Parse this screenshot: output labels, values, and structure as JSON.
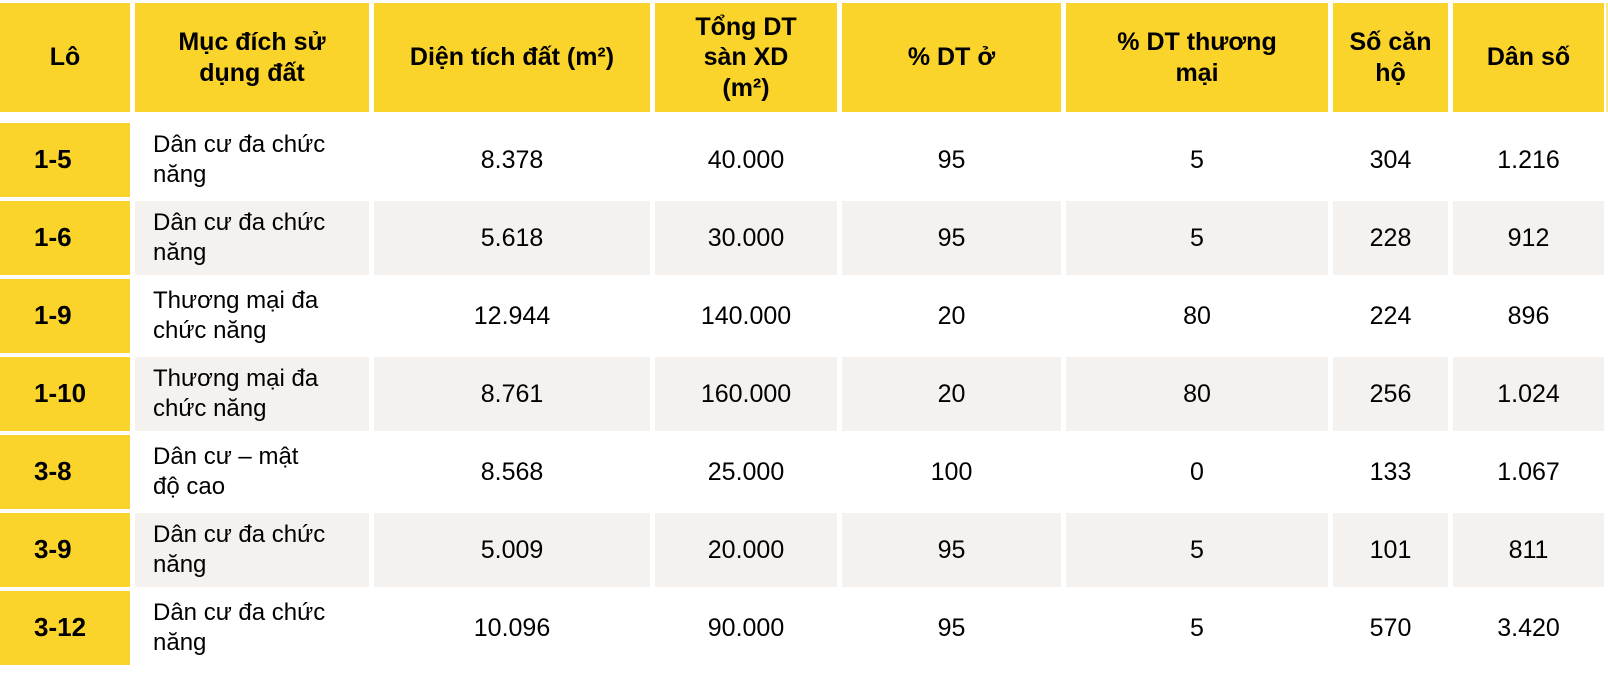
{
  "chart_data": {
    "type": "table",
    "title": "",
    "columns": [
      "Lô",
      "Mục đích sử\ndụng đất",
      "Diện tích đất (m²)",
      "Tổng DT\nsàn XD\n(m²)",
      "% DT ở",
      "% DT thương\nmại",
      "Số căn\nhộ",
      "Dân số"
    ],
    "fields": [
      "lot",
      "purpose",
      "land_area_m2",
      "total_floor_area_m2",
      "pct_residential",
      "pct_commercial",
      "apartments",
      "population"
    ],
    "rows": [
      {
        "lot": "1-5",
        "purpose": "Dân cư đa chức\nnăng",
        "land_area_m2": "8.378",
        "total_floor_area_m2": "40.000",
        "pct_residential": "95",
        "pct_commercial": "5",
        "apartments": "304",
        "population": "1.216"
      },
      {
        "lot": "1-6",
        "purpose": "Dân cư đa chức\nnăng",
        "land_area_m2": "5.618",
        "total_floor_area_m2": "30.000",
        "pct_residential": "95",
        "pct_commercial": "5",
        "apartments": "228",
        "population": "912"
      },
      {
        "lot": "1-9",
        "purpose": "Thương mại đa\nchức năng",
        "land_area_m2": "12.944",
        "total_floor_area_m2": "140.000",
        "pct_residential": "20",
        "pct_commercial": "80",
        "apartments": "224",
        "population": "896"
      },
      {
        "lot": "1-10",
        "purpose": "Thương mại đa\nchức năng",
        "land_area_m2": "8.761",
        "total_floor_area_m2": "160.000",
        "pct_residential": "20",
        "pct_commercial": "80",
        "apartments": "256",
        "population": "1.024"
      },
      {
        "lot": "3-8",
        "purpose": "Dân cư – mật\nđộ cao",
        "land_area_m2": "8.568",
        "total_floor_area_m2": "25.000",
        "pct_residential": "100",
        "pct_commercial": "0",
        "apartments": "133",
        "population": "1.067"
      },
      {
        "lot": "3-9",
        "purpose": "Dân cư đa chức\nnăng",
        "land_area_m2": "5.009",
        "total_floor_area_m2": "20.000",
        "pct_residential": "95",
        "pct_commercial": "5",
        "apartments": "101",
        "population": "811"
      },
      {
        "lot": "3-12",
        "purpose": "Dân cư đa chức\nnăng",
        "land_area_m2": "10.096",
        "total_floor_area_m2": "90.000",
        "pct_residential": "95",
        "pct_commercial": "5",
        "apartments": "570",
        "population": "3.420"
      }
    ]
  },
  "colors": {
    "header_yellow": "#FAD32B",
    "row_alt": "#F4F1EE",
    "row_base": "#FFFFFF",
    "text": "#000000"
  }
}
